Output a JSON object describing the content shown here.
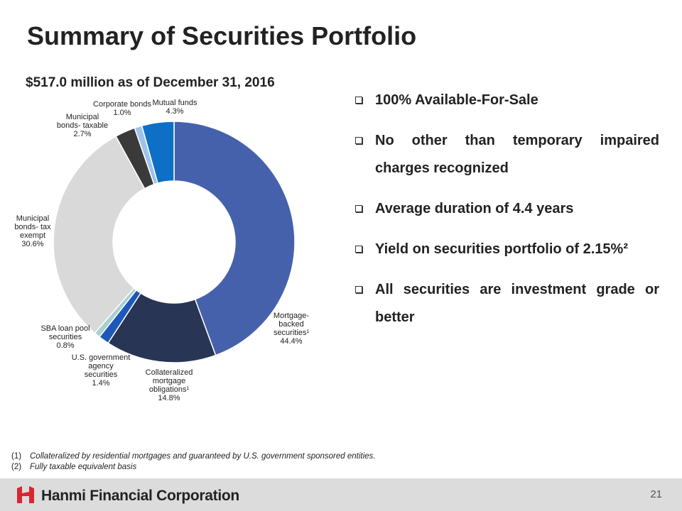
{
  "page": {
    "title": "Summary of Securities Portfolio",
    "subtitle": "$517.0 million as of December 31, 2016",
    "bullets": [
      "100% Available-For-Sale",
      "No other than temporary impaired charges recognized",
      "Average duration of 4.4 years",
      "Yield on securities portfolio of 2.15%²",
      "All securities are investment grade or better"
    ],
    "footnotes": [
      {
        "num": "(1)",
        "text": "Collateralized by residential mortgages and guaranteed by U.S. government sponsored entities."
      },
      {
        "num": "(2)",
        "text": "Fully taxable equivalent basis"
      }
    ],
    "footer": {
      "company": "Hanmi Financial Corporation",
      "page_number": "21"
    }
  },
  "chart_data": {
    "type": "donut",
    "title": "$517.0 million as of December 31, 2016",
    "unit": "%",
    "slices": [
      {
        "label": "Mortgage-backed securities¹",
        "lines": [
          "Mortgage-",
          "backed",
          "securities¹"
        ],
        "value": 44.4,
        "display": "44.4%",
        "color": "#4661ac"
      },
      {
        "label": "Collateralized mortgage obligations¹",
        "lines": [
          "Collateralized",
          "mortgage",
          "obligations¹"
        ],
        "value": 14.8,
        "display": "14.8%",
        "color": "#283554"
      },
      {
        "label": "U.S. government agency securities",
        "lines": [
          "U.S. government",
          "agency",
          "securities"
        ],
        "value": 1.4,
        "display": "1.4%",
        "color": "#1e58b8"
      },
      {
        "label": "SBA loan pool securities",
        "lines": [
          "SBA loan pool",
          "securities"
        ],
        "value": 0.8,
        "display": "0.8%",
        "color": "#a9cfcf"
      },
      {
        "label": "Municipal bonds- tax exempt",
        "lines": [
          "Municipal",
          "bonds- tax",
          "exempt"
        ],
        "value": 30.6,
        "display": "30.6%",
        "color": "#d9d9d9"
      },
      {
        "label": "Municipal bonds- taxable",
        "lines": [
          "Municipal",
          "bonds- taxable"
        ],
        "value": 2.7,
        "display": "2.7%",
        "color": "#3a3a3a"
      },
      {
        "label": "Corporate bonds",
        "lines": [
          "Corporate bonds"
        ],
        "value": 1.0,
        "display": "1.0%",
        "color": "#9ec3ea"
      },
      {
        "label": "Mutual funds",
        "lines": [
          "Mutual funds"
        ],
        "value": 4.3,
        "display": "4.3%",
        "color": "#0e6fc7"
      }
    ]
  }
}
